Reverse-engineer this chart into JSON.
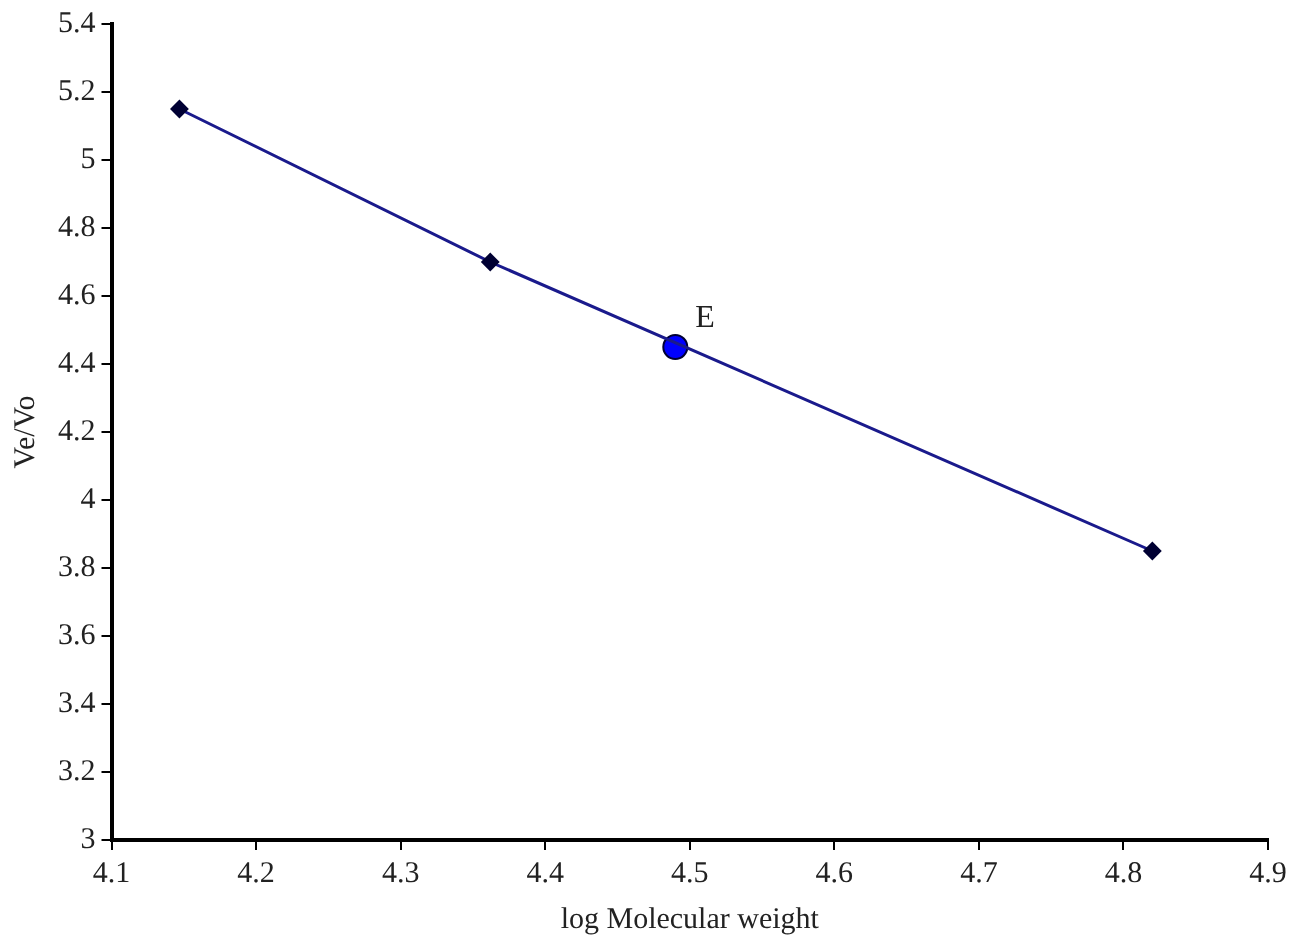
{
  "chart_data": {
    "type": "line",
    "xlabel": "log Molecular weight",
    "ylabel": "Ve/Vo",
    "xlim": [
      4.1,
      4.9
    ],
    "xticks": [
      4.1,
      4.2,
      4.3,
      4.4,
      4.5,
      4.6,
      4.7,
      4.8,
      4.9
    ],
    "ylim": [
      3,
      5.4
    ],
    "yticks": [
      3,
      3.2,
      3.4,
      3.6,
      3.8,
      4,
      4.2,
      4.4,
      4.6,
      4.8,
      5,
      5.2,
      5.4
    ],
    "grid": false,
    "legend": false,
    "marker": "diamond",
    "line_style": "solid",
    "series": [
      {
        "color": "#1a1a8c",
        "x": [
          4.147,
          4.362,
          4.82
        ],
        "values": [
          5.15,
          4.7,
          3.85
        ]
      },
      {
        "type": "scatter",
        "color": "#0000ff",
        "marker": "circle",
        "x": [
          4.49
        ],
        "values": [
          4.45
        ]
      }
    ],
    "annotations": [
      {
        "text": "E",
        "x": 4.49,
        "y": 4.45
      }
    ]
  }
}
